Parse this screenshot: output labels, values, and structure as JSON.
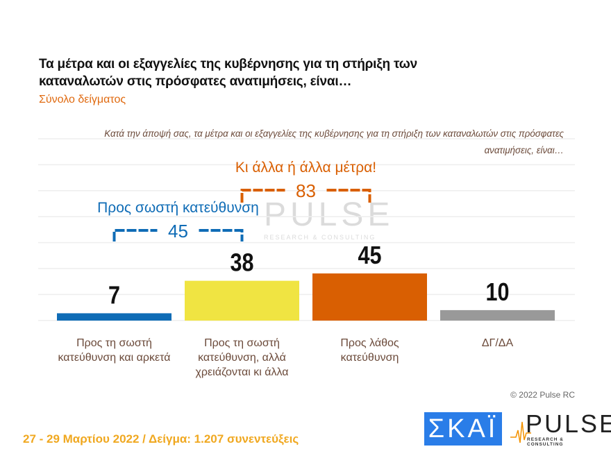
{
  "title": "Τα μέτρα και οι εξαγγελίες της κυβέρνησης για τη στήριξη των καταναλωτών στις πρόσφατες ανατιμήσεις, είναι…",
  "subtitle": "Σύνολο δείγματος",
  "question": "Κατά την άποψή σας, τα μέτρα και οι εξαγγελίες της κυβέρνησης για τη στήριξη των καταναλωτών στις πρόσφατες ανατιμήσεις, είναι…",
  "chart_data": {
    "type": "bar",
    "categories": [
      "Προς τη σωστή κατεύθυνση και αρκετά",
      "Προς τη σωστή κατεύθυνση, αλλά χρειάζονται κι άλλα",
      "Προς λάθος κατεύθυνση",
      "ΔΓ/ΔΑ"
    ],
    "values": [
      7,
      38,
      45,
      10
    ],
    "colors": [
      "#0f6cb6",
      "#f0e442",
      "#d95f02",
      "#999999"
    ],
    "ylim": [
      0,
      100
    ],
    "grid": true,
    "groups": [
      {
        "label": "Προς σωστή κατεύθυνση",
        "value": "45",
        "color": "#0f6cb6",
        "span": [
          0,
          1
        ]
      },
      {
        "label": "Κι άλλα ή άλλα μέτρα!",
        "value": "83",
        "color": "#d95f02",
        "span": [
          1,
          2
        ]
      }
    ]
  },
  "watermark": {
    "name": "PULSE",
    "tagline": "RESEARCH & CONSULTING"
  },
  "copyright": "© 2022 Pulse RC",
  "footer": "27 - 29  Μαρτίου  2022  /  Δείγμα:  1.207 συνεντεύξεις",
  "logos": {
    "skai": "ΣΚΑΪ",
    "pulse": "PULSE",
    "pulse_tagline": "RESEARCH & CONSULTING"
  }
}
